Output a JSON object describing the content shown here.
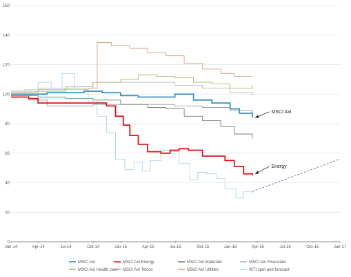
{
  "chart_data": {
    "type": "line",
    "title": "",
    "xlabel": "",
    "ylabel": "",
    "ylim": [
      0,
      160
    ],
    "yticks": [
      0,
      20,
      40,
      60,
      80,
      100,
      120,
      140,
      160
    ],
    "xlim": [
      "2014-01-01",
      "2017-01-01"
    ],
    "xticks": [
      "Jan-14",
      "Apr-14",
      "Jul-14",
      "Oct-14",
      "Jan-15",
      "Apr-15",
      "Jul-15",
      "Oct-15",
      "Jan-16",
      "Apr-16",
      "Jul-16",
      "Oct-16",
      "Jan-17"
    ],
    "grid": "horizontal",
    "legend_position": "bottom",
    "series": [
      {
        "name": "MSCI AxI",
        "color": "#3c8fbf",
        "x": [
          "2014-01-01",
          "2014-03-01",
          "2014-05-01",
          "2014-07-01",
          "2014-09-01",
          "2014-11-01",
          "2015-01-01",
          "2015-03-01",
          "2015-05-01",
          "2015-07-01",
          "2015-09-01",
          "2015-11-01",
          "2016-01-01",
          "2016-02-01",
          "2016-03-15"
        ],
        "values": [
          100,
          100,
          101,
          101,
          102,
          101,
          99,
          98,
          98,
          100,
          96,
          94,
          90,
          87,
          84
        ]
      },
      {
        "name": "MSCI AxI Energy",
        "color": "#d9141a",
        "x": [
          "2014-01-01",
          "2014-03-01",
          "2014-04-01",
          "2014-07-01",
          "2014-10-01",
          "2014-11-15",
          "2014-12-15",
          "2015-01-10",
          "2015-02-01",
          "2015-03-01",
          "2015-04-01",
          "2015-05-15",
          "2015-06-15",
          "2015-07-15",
          "2015-08-15",
          "2015-10-01",
          "2015-11-15",
          "2015-12-15",
          "2016-01-15",
          "2016-02-15",
          "2016-03-15"
        ],
        "values": [
          98,
          97,
          94,
          94,
          94,
          92,
          85,
          79,
          72,
          66,
          61,
          60,
          62,
          63,
          62,
          58,
          58,
          55,
          51,
          46,
          45
        ]
      },
      {
        "name": "MSCI AxI Materials",
        "color": "#7a7a7a",
        "x": [
          "2014-01-01",
          "2014-04-01",
          "2014-07-01",
          "2014-10-01",
          "2015-01-01",
          "2015-04-01",
          "2015-06-01",
          "2015-08-01",
          "2015-10-01",
          "2015-12-01",
          "2016-01-15",
          "2016-03-15"
        ],
        "values": [
          99,
          98,
          97,
          96,
          93,
          91,
          90,
          85,
          82,
          78,
          73,
          70
        ]
      },
      {
        "name": "MSCI AxI Financials",
        "color": "#b7b7b7",
        "x": [
          "2014-01-01",
          "2014-04-01",
          "2014-07-01",
          "2014-10-01",
          "2015-01-01",
          "2015-04-01",
          "2015-07-01",
          "2015-10-01",
          "2016-01-01",
          "2016-03-15"
        ],
        "values": [
          100,
          104,
          105,
          108,
          108,
          108,
          106,
          104,
          101,
          99
        ]
      },
      {
        "name": "MSCI AxI Health care",
        "color": "#a9b36a",
        "x": [
          "2014-01-01",
          "2014-04-01",
          "2014-07-01",
          "2014-10-01",
          "2015-01-01",
          "2015-03-01",
          "2015-05-01",
          "2015-07-01",
          "2015-09-01",
          "2015-11-01",
          "2016-01-01",
          "2016-03-15"
        ],
        "values": [
          101,
          103,
          104,
          108,
          110,
          113,
          112,
          111,
          108,
          107,
          104,
          106
        ]
      },
      {
        "name": "MSCI AxI Telcos",
        "color": "#9a9a9a",
        "x": [
          "2014-01-01",
          "2014-03-01",
          "2014-05-01",
          "2014-07-01",
          "2014-10-01",
          "2015-01-01",
          "2015-04-01",
          "2015-07-01",
          "2015-10-01",
          "2016-01-01",
          "2016-03-15"
        ],
        "values": [
          99,
          96,
          92,
          92,
          93,
          93,
          93,
          92,
          91,
          89,
          87
        ]
      },
      {
        "name": "MSCI AxI Utilities",
        "color": "#d4a186",
        "x": [
          "2014-01-01",
          "2014-04-01",
          "2014-07-01",
          "2014-09-15",
          "2014-10-15",
          "2014-12-01",
          "2015-02-01",
          "2015-04-01",
          "2015-06-01",
          "2015-08-01",
          "2015-10-01",
          "2015-12-01",
          "2016-01-15",
          "2016-03-15"
        ],
        "values": [
          102,
          102,
          103,
          104,
          135,
          133,
          131,
          128,
          126,
          121,
          117,
          114,
          112,
          112
        ]
      },
      {
        "name": "WTI spot and forecast",
        "color": "#aed4ea",
        "x": [
          "2014-01-01",
          "2014-02-15",
          "2014-04-01",
          "2014-05-15",
          "2014-06-20",
          "2014-08-01",
          "2014-09-15",
          "2014-10-15",
          "2014-11-15",
          "2014-12-15",
          "2015-01-15",
          "2015-02-15",
          "2015-03-15",
          "2015-04-10",
          "2015-05-15",
          "2015-06-15",
          "2015-07-15",
          "2015-08-20",
          "2015-09-15",
          "2015-10-15",
          "2015-11-15",
          "2015-12-15",
          "2016-01-20",
          "2016-02-15",
          "2016-03-15"
        ],
        "values": [
          100,
          103,
          108,
          104,
          114,
          104,
          95,
          85,
          74,
          56,
          49,
          54,
          48,
          55,
          62,
          61,
          53,
          42,
          47,
          46,
          43,
          36,
          30,
          34,
          32
        ]
      },
      {
        "name": "WTI spot and forecast",
        "color": "#8a5aa8",
        "dashed": true,
        "x": [
          "2016-03-15",
          "2017-01-01"
        ],
        "values": [
          34,
          56
        ]
      }
    ],
    "annotations": [
      {
        "text": "MSCI AxI",
        "arrow_to_x": "2016-03-20",
        "arrow_to_y": 84,
        "text_x": "2016-05-15",
        "text_y": 88
      },
      {
        "text": "Energy",
        "arrow_to_x": "2016-03-20",
        "arrow_to_y": 46,
        "text_x": "2016-05-15",
        "text_y": 51
      }
    ],
    "legend": [
      [
        "MSCI AxI",
        "MSCI AxI Energy",
        "MSCI AxI Materials",
        "MSCI AxI Financials"
      ],
      [
        "MSCI AxI Health care",
        "MSCI AxI Telcos",
        "MSCI AxI Utilities",
        "WTI spot and forecast"
      ]
    ]
  }
}
